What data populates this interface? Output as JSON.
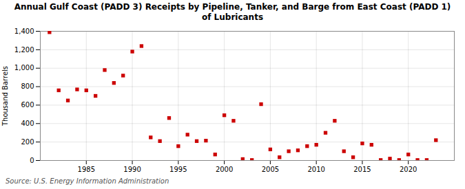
{
  "chart_data": {
    "type": "scatter",
    "title": "Annual Gulf Coast (PADD 3) Receipts by Pipeline, Tanker, and Barge from East Coast (PADD 1)\nof Lubricants",
    "ylabel": "Thousand Barrels",
    "annotations": [
      "Source: U.S. Energy Information Administration"
    ],
    "x": [
      1981,
      1982,
      1983,
      1984,
      1985,
      1986,
      1987,
      1988,
      1989,
      1990,
      1991,
      1992,
      1993,
      1994,
      1995,
      1996,
      1997,
      1998,
      1999,
      2000,
      2001,
      2002,
      2003,
      2004,
      2005,
      2006,
      2007,
      2008,
      2009,
      2010,
      2011,
      2012,
      2013,
      2014,
      2015,
      2016,
      2017,
      2018,
      2019,
      2020,
      2021,
      2022,
      2023
    ],
    "values": [
      1390,
      760,
      650,
      770,
      760,
      700,
      980,
      840,
      920,
      1180,
      1240,
      250,
      210,
      460,
      155,
      280,
      210,
      215,
      65,
      490,
      430,
      15,
      5,
      610,
      120,
      35,
      100,
      110,
      155,
      170,
      300,
      430,
      100,
      35,
      185,
      170,
      5,
      20,
      5,
      65,
      5,
      5,
      220
    ],
    "color": "#cc0000",
    "marker": "square",
    "xlim": [
      1980,
      2025
    ],
    "ylim": [
      0,
      1400
    ],
    "xticks": [
      1985,
      1990,
      1995,
      2000,
      2005,
      2010,
      2015,
      2020
    ],
    "yticks": [
      0,
      200,
      400,
      600,
      800,
      {
        "value": 1000,
        "label": "1,000"
      },
      {
        "value": 1200,
        "label": "1,200"
      },
      {
        "value": 1400,
        "label": "1,400"
      }
    ],
    "grid": true
  }
}
